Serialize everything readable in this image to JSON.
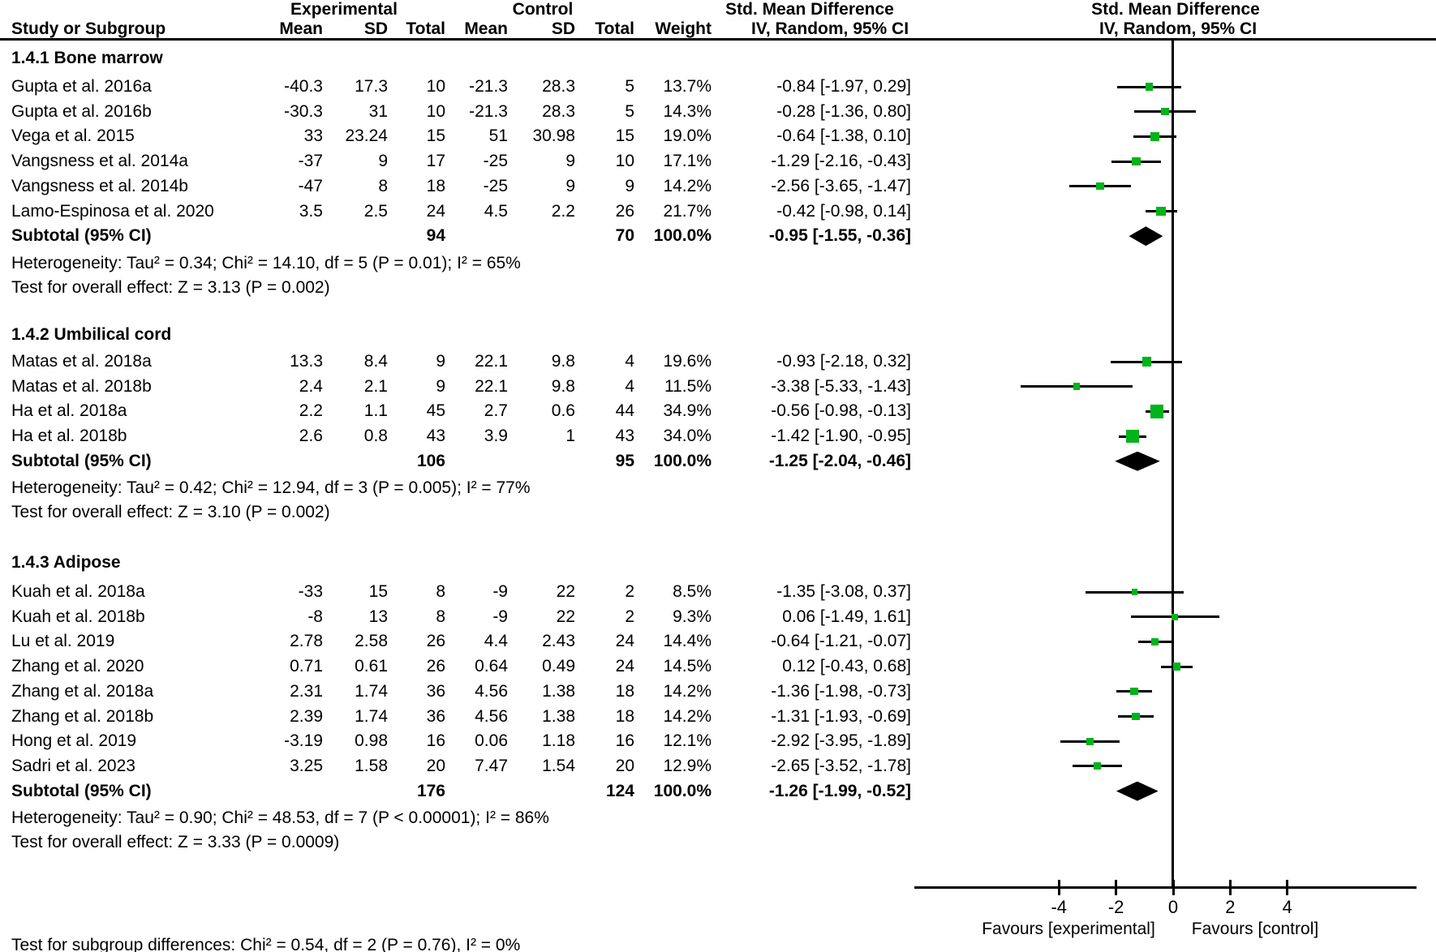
{
  "colors": {
    "marker_green": "#00b31b",
    "diamond_black": "#000000",
    "line_black": "#000000",
    "text_black": "#000000"
  },
  "table_header": {
    "group_experimental": "Experimental",
    "group_control": "Control",
    "smd_left": "Std. Mean Difference",
    "smd_right": "Std. Mean Difference",
    "study": "Study or Subgroup",
    "mean_e": "Mean",
    "sd_e": "SD",
    "total_e": "Total",
    "mean_c": "Mean",
    "sd_c": "SD",
    "total_c": "Total",
    "weight": "Weight",
    "iv_left": "IV, Random, 95% CI",
    "iv_right": "IV, Random, 95% CI"
  },
  "axis": {
    "tick_labels": [
      "-4",
      "-2",
      "0",
      "2",
      "4"
    ],
    "favours_left": "Favours [experimental]",
    "favours_right": "Favours [control]"
  },
  "footer": {
    "subgroup_test": "Test for subgroup differences: Chi² = 0.54, df = 2 (P = 0.76), I² = 0%"
  },
  "chart_data": {
    "type": "forest",
    "x_axis": {
      "ticks": [
        -4,
        -2,
        0,
        2,
        4
      ],
      "zero_line": 0,
      "approx_range": [
        -9,
        8.5
      ]
    },
    "effect_measure": "Std. Mean Difference, IV, Random, 95% CI",
    "subgroups": [
      {
        "title": "1.4.1 Bone marrow",
        "studies": [
          {
            "study": "Gupta et al. 2016a",
            "mean_e": "-40.3",
            "sd_e": "17.3",
            "total_e": "10",
            "mean_c": "-21.3",
            "sd_c": "28.3",
            "total_c": "5",
            "weight": "13.7%",
            "weight_val": 13.7,
            "smd": -0.84,
            "lo": -1.97,
            "hi": 0.29,
            "ci_text": "-0.84 [-1.97, 0.29]"
          },
          {
            "study": "Gupta et al. 2016b",
            "mean_e": "-30.3",
            "sd_e": "31",
            "total_e": "10",
            "mean_c": "-21.3",
            "sd_c": "28.3",
            "total_c": "5",
            "weight": "14.3%",
            "weight_val": 14.3,
            "smd": -0.28,
            "lo": -1.36,
            "hi": 0.8,
            "ci_text": "-0.28 [-1.36, 0.80]"
          },
          {
            "study": "Vega et al. 2015",
            "mean_e": "33",
            "sd_e": "23.24",
            "total_e": "15",
            "mean_c": "51",
            "sd_c": "30.98",
            "total_c": "15",
            "weight": "19.0%",
            "weight_val": 19.0,
            "smd": -0.64,
            "lo": -1.38,
            "hi": 0.1,
            "ci_text": "-0.64 [-1.38, 0.10]"
          },
          {
            "study": "Vangsness et al. 2014a",
            "mean_e": "-37",
            "sd_e": "9",
            "total_e": "17",
            "mean_c": "-25",
            "sd_c": "9",
            "total_c": "10",
            "weight": "17.1%",
            "weight_val": 17.1,
            "smd": -1.29,
            "lo": -2.16,
            "hi": -0.43,
            "ci_text": "-1.29 [-2.16, -0.43]"
          },
          {
            "study": "Vangsness et al. 2014b",
            "mean_e": "-47",
            "sd_e": "8",
            "total_e": "18",
            "mean_c": "-25",
            "sd_c": "9",
            "total_c": "9",
            "weight": "14.2%",
            "weight_val": 14.2,
            "smd": -2.56,
            "lo": -3.65,
            "hi": -1.47,
            "ci_text": "-2.56 [-3.65, -1.47]"
          },
          {
            "study": "Lamo-Espinosa et al. 2020",
            "mean_e": "3.5",
            "sd_e": "2.5",
            "total_e": "24",
            "mean_c": "4.5",
            "sd_c": "2.2",
            "total_c": "26",
            "weight": "21.7%",
            "weight_val": 21.7,
            "smd": -0.42,
            "lo": -0.98,
            "hi": 0.14,
            "ci_text": "-0.42 [-0.98, 0.14]"
          }
        ],
        "subtotal": {
          "label": "Subtotal (95% CI)",
          "total_e": "94",
          "total_c": "70",
          "weight": "100.0%",
          "smd": -0.95,
          "lo": -1.55,
          "hi": -0.36,
          "ci_text": "-0.95 [-1.55, -0.36]"
        },
        "heterogeneity": "Heterogeneity: Tau² = 0.34; Chi² = 14.10, df = 5 (P = 0.01); I² = 65%",
        "overall_effect": "Test for overall effect: Z = 3.13 (P = 0.002)"
      },
      {
        "title": "1.4.2 Umbilical cord",
        "studies": [
          {
            "study": "Matas et al. 2018a",
            "mean_e": "13.3",
            "sd_e": "8.4",
            "total_e": "9",
            "mean_c": "22.1",
            "sd_c": "9.8",
            "total_c": "4",
            "weight": "19.6%",
            "weight_val": 19.6,
            "smd": -0.93,
            "lo": -2.18,
            "hi": 0.32,
            "ci_text": "-0.93 [-2.18, 0.32]"
          },
          {
            "study": "Matas et al. 2018b",
            "mean_e": "2.4",
            "sd_e": "2.1",
            "total_e": "9",
            "mean_c": "22.1",
            "sd_c": "9.8",
            "total_c": "4",
            "weight": "11.5%",
            "weight_val": 11.5,
            "smd": -3.38,
            "lo": -5.33,
            "hi": -1.43,
            "ci_text": "-3.38 [-5.33, -1.43]"
          },
          {
            "study": "Ha et al. 2018a",
            "mean_e": "2.2",
            "sd_e": "1.1",
            "total_e": "45",
            "mean_c": "2.7",
            "sd_c": "0.6",
            "total_c": "44",
            "weight": "34.9%",
            "weight_val": 34.9,
            "smd": -0.56,
            "lo": -0.98,
            "hi": -0.13,
            "ci_text": "-0.56 [-0.98, -0.13]"
          },
          {
            "study": "Ha et al. 2018b",
            "mean_e": "2.6",
            "sd_e": "0.8",
            "total_e": "43",
            "mean_c": "3.9",
            "sd_c": "1",
            "total_c": "43",
            "weight": "34.0%",
            "weight_val": 34.0,
            "smd": -1.42,
            "lo": -1.9,
            "hi": -0.95,
            "ci_text": "-1.42 [-1.90, -0.95]"
          }
        ],
        "subtotal": {
          "label": "Subtotal (95% CI)",
          "total_e": "106",
          "total_c": "95",
          "weight": "100.0%",
          "smd": -1.25,
          "lo": -2.04,
          "hi": -0.46,
          "ci_text": "-1.25 [-2.04, -0.46]"
        },
        "heterogeneity": "Heterogeneity: Tau² = 0.42; Chi² = 12.94, df = 3 (P = 0.005); I² = 77%",
        "overall_effect": "Test for overall effect: Z = 3.10 (P = 0.002)"
      },
      {
        "title": "1.4.3 Adipose",
        "studies": [
          {
            "study": "Kuah et al. 2018a",
            "mean_e": "-33",
            "sd_e": "15",
            "total_e": "8",
            "mean_c": "-9",
            "sd_c": "22",
            "total_c": "2",
            "weight": "8.5%",
            "weight_val": 8.5,
            "smd": -1.35,
            "lo": -3.08,
            "hi": 0.37,
            "ci_text": "-1.35 [-3.08, 0.37]"
          },
          {
            "study": "Kuah et al. 2018b",
            "mean_e": "-8",
            "sd_e": "13",
            "total_e": "8",
            "mean_c": "-9",
            "sd_c": "22",
            "total_c": "2",
            "weight": "9.3%",
            "weight_val": 9.3,
            "smd": 0.06,
            "lo": -1.49,
            "hi": 1.61,
            "ci_text": "0.06 [-1.49, 1.61]"
          },
          {
            "study": "Lu et al. 2019",
            "mean_e": "2.78",
            "sd_e": "2.58",
            "total_e": "26",
            "mean_c": "4.4",
            "sd_c": "2.43",
            "total_c": "24",
            "weight": "14.4%",
            "weight_val": 14.4,
            "smd": -0.64,
            "lo": -1.21,
            "hi": -0.07,
            "ci_text": "-0.64 [-1.21, -0.07]"
          },
          {
            "study": "Zhang et al. 2020",
            "mean_e": "0.71",
            "sd_e": "0.61",
            "total_e": "26",
            "mean_c": "0.64",
            "sd_c": "0.49",
            "total_c": "24",
            "weight": "14.5%",
            "weight_val": 14.5,
            "smd": 0.12,
            "lo": -0.43,
            "hi": 0.68,
            "ci_text": "0.12 [-0.43, 0.68]"
          },
          {
            "study": "Zhang et al. 2018a",
            "mean_e": "2.31",
            "sd_e": "1.74",
            "total_e": "36",
            "mean_c": "4.56",
            "sd_c": "1.38",
            "total_c": "18",
            "weight": "14.2%",
            "weight_val": 14.2,
            "smd": -1.36,
            "lo": -1.98,
            "hi": -0.73,
            "ci_text": "-1.36 [-1.98, -0.73]"
          },
          {
            "study": "Zhang et al. 2018b",
            "mean_e": "2.39",
            "sd_e": "1.74",
            "total_e": "36",
            "mean_c": "4.56",
            "sd_c": "1.38",
            "total_c": "18",
            "weight": "14.2%",
            "weight_val": 14.2,
            "smd": -1.31,
            "lo": -1.93,
            "hi": -0.69,
            "ci_text": "-1.31 [-1.93, -0.69]"
          },
          {
            "study": "Hong et al. 2019",
            "mean_e": "-3.19",
            "sd_e": "0.98",
            "total_e": "16",
            "mean_c": "0.06",
            "sd_c": "1.18",
            "total_c": "16",
            "weight": "12.1%",
            "weight_val": 12.1,
            "smd": -2.92,
            "lo": -3.95,
            "hi": -1.89,
            "ci_text": "-2.92 [-3.95, -1.89]"
          },
          {
            "study": "Sadri et al. 2023",
            "mean_e": "3.25",
            "sd_e": "1.58",
            "total_e": "20",
            "mean_c": "7.47",
            "sd_c": "1.54",
            "total_c": "20",
            "weight": "12.9%",
            "weight_val": 12.9,
            "smd": -2.65,
            "lo": -3.52,
            "hi": -1.78,
            "ci_text": "-2.65 [-3.52, -1.78]"
          }
        ],
        "subtotal": {
          "label": "Subtotal (95% CI)",
          "total_e": "176",
          "total_c": "124",
          "weight": "100.0%",
          "smd": -1.26,
          "lo": -1.99,
          "hi": -0.52,
          "ci_text": "-1.26 [-1.99, -0.52]"
        },
        "heterogeneity": "Heterogeneity: Tau² = 0.90; Chi² = 48.53, df = 7 (P < 0.00001); I² = 86%",
        "overall_effect": "Test for overall effect: Z = 3.33 (P = 0.0009)"
      }
    ]
  }
}
